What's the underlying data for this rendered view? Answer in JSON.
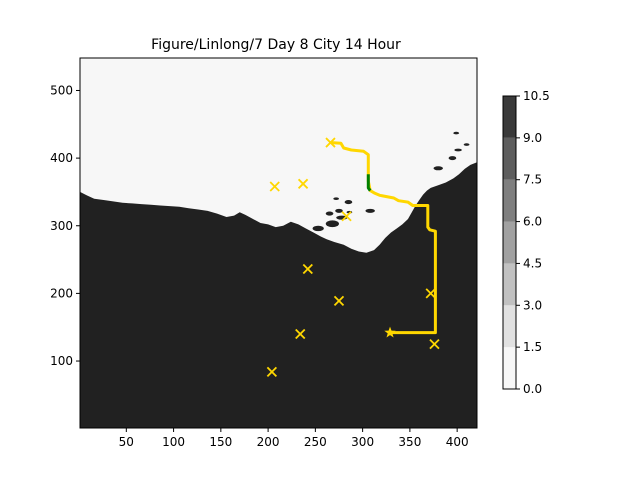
{
  "chart_data": {
    "type": "contour",
    "title": "Figure/Linlong/7 Day 8 City 14 Hour",
    "xlabel": "",
    "ylabel": "",
    "xlim": [
      1,
      421
    ],
    "ylim": [
      1,
      548
    ],
    "x_ticks": [
      50,
      100,
      150,
      200,
      250,
      300,
      350,
      400
    ],
    "y_ticks": [
      100,
      200,
      300,
      400,
      500
    ],
    "grid": false,
    "colorbar": {
      "levels": [
        0.0,
        1.5,
        3.0,
        4.5,
        6.0,
        7.5,
        9.0,
        10.5
      ],
      "tick_labels": [
        "0.0",
        "1.5",
        "3.0",
        "4.5",
        "6.0",
        "7.5",
        "9.0",
        "10.5"
      ],
      "colors": [
        "#f7f7f7",
        "#e1e1e1",
        "#c1c1c1",
        "#a1a1a1",
        "#7f7f7f",
        "#5e5e5e",
        "#3a3a3a"
      ],
      "fill_dark": "#212121",
      "fill_light": "#f7f7f7"
    },
    "cities": [
      {
        "x": 266,
        "y": 423
      },
      {
        "x": 207,
        "y": 358
      },
      {
        "x": 237,
        "y": 362
      },
      {
        "x": 283,
        "y": 314
      },
      {
        "x": 242,
        "y": 236
      },
      {
        "x": 275,
        "y": 189
      },
      {
        "x": 372,
        "y": 200
      },
      {
        "x": 234,
        "y": 140
      },
      {
        "x": 376,
        "y": 125
      },
      {
        "x": 204,
        "y": 84
      }
    ],
    "start": {
      "x": 329,
      "y": 142
    },
    "marker_color": "#ffd700",
    "path_main": [
      [
        329,
        142
      ],
      [
        377,
        142
      ],
      [
        377,
        292
      ],
      [
        371,
        294
      ],
      [
        369,
        298
      ],
      [
        369,
        330
      ],
      [
        353,
        330
      ],
      [
        348,
        335
      ],
      [
        338,
        337
      ],
      [
        333,
        341
      ],
      [
        318,
        345
      ],
      [
        313,
        348
      ],
      [
        308,
        352
      ],
      [
        306,
        366
      ],
      [
        306,
        405
      ],
      [
        301,
        410
      ],
      [
        288,
        412
      ],
      [
        280,
        415
      ],
      [
        277,
        422
      ],
      [
        267,
        423
      ]
    ],
    "path_main_color": "#ffd700",
    "path_alt": [
      [
        308,
        352
      ],
      [
        306,
        356
      ],
      [
        306,
        376
      ]
    ],
    "path_alt_color": "#008000",
    "coastline": [
      [
        1,
        350
      ],
      [
        8,
        345
      ],
      [
        16,
        340
      ],
      [
        26,
        338
      ],
      [
        36,
        336
      ],
      [
        46,
        334
      ],
      [
        56,
        333
      ],
      [
        66,
        332
      ],
      [
        76,
        331
      ],
      [
        86,
        330
      ],
      [
        96,
        329
      ],
      [
        106,
        328
      ],
      [
        116,
        326
      ],
      [
        126,
        324
      ],
      [
        136,
        322
      ],
      [
        146,
        318
      ],
      [
        156,
        313
      ],
      [
        164,
        315
      ],
      [
        170,
        320
      ],
      [
        176,
        316
      ],
      [
        184,
        310
      ],
      [
        192,
        304
      ],
      [
        200,
        302
      ],
      [
        208,
        298
      ],
      [
        216,
        300
      ],
      [
        224,
        306
      ],
      [
        232,
        302
      ],
      [
        240,
        296
      ],
      [
        248,
        290
      ],
      [
        256,
        284
      ],
      [
        262,
        280
      ],
      [
        270,
        276
      ],
      [
        280,
        272
      ],
      [
        288,
        266
      ],
      [
        296,
        262
      ],
      [
        304,
        260
      ],
      [
        312,
        264
      ],
      [
        318,
        272
      ],
      [
        324,
        282
      ],
      [
        330,
        290
      ],
      [
        336,
        296
      ],
      [
        342,
        302
      ],
      [
        348,
        310
      ],
      [
        352,
        320
      ],
      [
        356,
        330
      ],
      [
        360,
        338
      ],
      [
        364,
        346
      ],
      [
        368,
        352
      ],
      [
        372,
        356
      ],
      [
        380,
        360
      ],
      [
        388,
        364
      ],
      [
        396,
        370
      ],
      [
        402,
        376
      ],
      [
        408,
        384
      ],
      [
        414,
        390
      ],
      [
        421,
        394
      ]
    ],
    "islands": [
      {
        "cx": 268,
        "cy": 303,
        "rx": 7,
        "ry": 5
      },
      {
        "cx": 253,
        "cy": 296,
        "rx": 6,
        "ry": 4
      },
      {
        "cx": 265,
        "cy": 318,
        "rx": 4,
        "ry": 3
      },
      {
        "cx": 275,
        "cy": 322,
        "rx": 4,
        "ry": 3
      },
      {
        "cx": 278,
        "cy": 312,
        "rx": 6,
        "ry": 3
      },
      {
        "cx": 286,
        "cy": 320,
        "rx": 3,
        "ry": 2
      },
      {
        "cx": 272,
        "cy": 340,
        "rx": 3,
        "ry": 2
      },
      {
        "cx": 285,
        "cy": 335,
        "rx": 4,
        "ry": 3
      },
      {
        "cx": 308,
        "cy": 322,
        "rx": 5,
        "ry": 3
      },
      {
        "cx": 380,
        "cy": 385,
        "rx": 5,
        "ry": 3
      },
      {
        "cx": 395,
        "cy": 400,
        "rx": 4,
        "ry": 3
      },
      {
        "cx": 410,
        "cy": 420,
        "rx": 3,
        "ry": 2
      },
      {
        "cx": 401,
        "cy": 412,
        "rx": 4,
        "ry": 2
      },
      {
        "cx": 399,
        "cy": 437,
        "rx": 3,
        "ry": 2
      }
    ]
  }
}
